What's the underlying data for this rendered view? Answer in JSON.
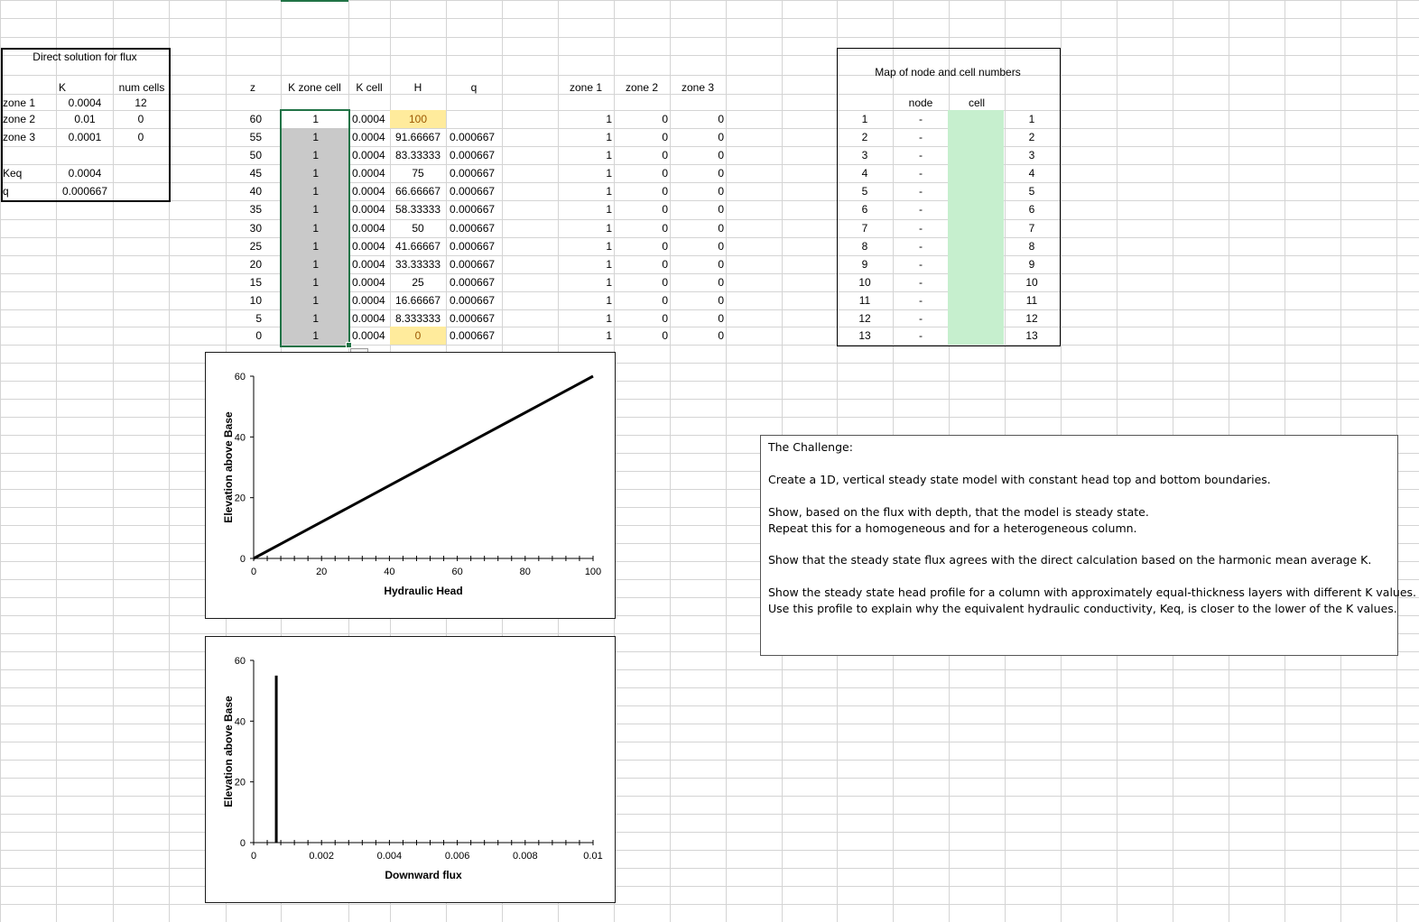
{
  "flux_box": {
    "title": "Direct solution for flux",
    "header_k": "K",
    "header_cells": "num cells",
    "zones": [
      {
        "label": "zone 1",
        "k": "0.0004",
        "cells": "12"
      },
      {
        "label": "zone 2",
        "k": "0.01",
        "cells": "0"
      },
      {
        "label": "zone 3",
        "k": "0.0001",
        "cells": "0"
      }
    ],
    "keq_label": "Keq",
    "keq_value": "0.0004",
    "q_label": "q",
    "q_value": "0.000667"
  },
  "table": {
    "headers": {
      "z": "z",
      "kzone": "K zone cell",
      "kcell": "K cell",
      "h": "H",
      "q": "q",
      "zone1": "zone 1",
      "zone2": "zone 2",
      "zone3": "zone 3"
    },
    "rows": [
      {
        "z": "60",
        "kzone": "1",
        "kcell": "0.0004",
        "h": "100",
        "q": "",
        "z1": "1",
        "z2": "0",
        "z3": "0"
      },
      {
        "z": "55",
        "kzone": "1",
        "kcell": "0.0004",
        "h": "91.66667",
        "q": "0.000667",
        "z1": "1",
        "z2": "0",
        "z3": "0"
      },
      {
        "z": "50",
        "kzone": "1",
        "kcell": "0.0004",
        "h": "83.33333",
        "q": "0.000667",
        "z1": "1",
        "z2": "0",
        "z3": "0"
      },
      {
        "z": "45",
        "kzone": "1",
        "kcell": "0.0004",
        "h": "75",
        "q": "0.000667",
        "z1": "1",
        "z2": "0",
        "z3": "0"
      },
      {
        "z": "40",
        "kzone": "1",
        "kcell": "0.0004",
        "h": "66.66667",
        "q": "0.000667",
        "z1": "1",
        "z2": "0",
        "z3": "0"
      },
      {
        "z": "35",
        "kzone": "1",
        "kcell": "0.0004",
        "h": "58.33333",
        "q": "0.000667",
        "z1": "1",
        "z2": "0",
        "z3": "0"
      },
      {
        "z": "30",
        "kzone": "1",
        "kcell": "0.0004",
        "h": "50",
        "q": "0.000667",
        "z1": "1",
        "z2": "0",
        "z3": "0"
      },
      {
        "z": "25",
        "kzone": "1",
        "kcell": "0.0004",
        "h": "41.66667",
        "q": "0.000667",
        "z1": "1",
        "z2": "0",
        "z3": "0"
      },
      {
        "z": "20",
        "kzone": "1",
        "kcell": "0.0004",
        "h": "33.33333",
        "q": "0.000667",
        "z1": "1",
        "z2": "0",
        "z3": "0"
      },
      {
        "z": "15",
        "kzone": "1",
        "kcell": "0.0004",
        "h": "25",
        "q": "0.000667",
        "z1": "1",
        "z2": "0",
        "z3": "0"
      },
      {
        "z": "10",
        "kzone": "1",
        "kcell": "0.0004",
        "h": "16.66667",
        "q": "0.000667",
        "z1": "1",
        "z2": "0",
        "z3": "0"
      },
      {
        "z": "5",
        "kzone": "1",
        "kcell": "0.0004",
        "h": "8.333333",
        "q": "0.000667",
        "z1": "1",
        "z2": "0",
        "z3": "0"
      },
      {
        "z": "0",
        "kzone": "1",
        "kcell": "0.0004",
        "h": "0",
        "q": "0.000667",
        "z1": "1",
        "z2": "0",
        "z3": "0"
      }
    ]
  },
  "map_box": {
    "title": "Map of node and cell numbers",
    "node_header": "node",
    "cell_header": "cell",
    "rows": [
      {
        "n": "1",
        "d": "-",
        "c": "1"
      },
      {
        "n": "2",
        "d": "-",
        "c": "2"
      },
      {
        "n": "3",
        "d": "-",
        "c": "3"
      },
      {
        "n": "4",
        "d": "-",
        "c": "4"
      },
      {
        "n": "5",
        "d": "-",
        "c": "5"
      },
      {
        "n": "6",
        "d": "-",
        "c": "6"
      },
      {
        "n": "7",
        "d": "-",
        "c": "7"
      },
      {
        "n": "8",
        "d": "-",
        "c": "8"
      },
      {
        "n": "9",
        "d": "-",
        "c": "9"
      },
      {
        "n": "10",
        "d": "-",
        "c": "10"
      },
      {
        "n": "11",
        "d": "-",
        "c": "11"
      },
      {
        "n": "12",
        "d": "-",
        "c": "12"
      },
      {
        "n": "13",
        "d": "-",
        "c": "13"
      }
    ]
  },
  "challenge": {
    "title": "The Challenge:",
    "line1": "Create a 1D, vertical steady state model with constant head top and bottom boundaries.",
    "line2": "Show, based on the flux with depth, that the model is steady state.",
    "line3": "Repeat this for a homogeneous and for a heterogeneous column.",
    "line4": "Show that the steady state flux agrees with the direct calculation based on the harmonic mean average K.",
    "line5": "Show the steady state head profile for a column with approximately equal-thickness layers with different K values.",
    "line6": "Use this profile to explain why the equivalent hydraulic conductivity, Keq, is closer to the lower of the K values."
  },
  "colors": {
    "highlight_yellow": "#ffeb9c",
    "highlight_gray": "#c9c9c9",
    "highlight_green": "#c6efce",
    "selection_green": "#217346",
    "gridline": "#d4d4d4"
  },
  "chart_data": [
    {
      "type": "line",
      "xlabel": "Hydraulic Head",
      "ylabel": "Elevation above Base",
      "xlim": [
        0,
        100
      ],
      "ylim": [
        0,
        60
      ],
      "xticks": [
        "0",
        "20",
        "40",
        "60",
        "80",
        "100"
      ],
      "yticks": [
        "0",
        "20",
        "40",
        "60"
      ],
      "series": [
        {
          "x": [
            0,
            8.333333,
            16.66667,
            25,
            33.33333,
            41.66667,
            50,
            58.33333,
            66.66667,
            75,
            83.33333,
            91.66667,
            100
          ],
          "y": [
            0,
            5,
            10,
            15,
            20,
            25,
            30,
            35,
            40,
            45,
            50,
            55,
            60
          ]
        }
      ]
    },
    {
      "type": "line",
      "xlabel": "Downward flux",
      "ylabel": "Elevation above Base",
      "xlim": [
        0,
        0.01
      ],
      "ylim": [
        0,
        60
      ],
      "xticks": [
        "0",
        "0.002",
        "0.004",
        "0.006",
        "0.008",
        "0.01"
      ],
      "yticks": [
        "0",
        "20",
        "40",
        "60"
      ],
      "series": [
        {
          "x": [
            0.000667,
            0.000667
          ],
          "y": [
            0,
            55
          ]
        }
      ]
    }
  ]
}
